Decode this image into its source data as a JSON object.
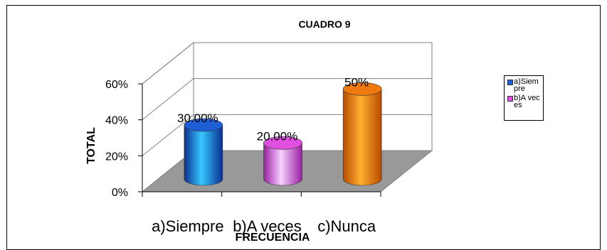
{
  "chart_data": {
    "type": "bar",
    "title": "CUADRO 9",
    "xlabel": "FRECUENCIA",
    "ylabel": "TOTAL",
    "categories": [
      "a)Siempre",
      "b)A veces",
      "c)Nunca"
    ],
    "values": [
      30,
      20,
      50
    ],
    "data_labels": [
      "30.00%",
      "20.00%",
      "50%"
    ],
    "yticks": [
      "0%",
      "20%",
      "40%",
      "60%"
    ],
    "ylim": [
      0,
      60
    ],
    "grid": true,
    "legend": {
      "position": "right",
      "entries": [
        {
          "label": "a)Siempre",
          "color": "#1f5fd6"
        },
        {
          "label": "b)A veces",
          "color": "#e04fe0"
        }
      ]
    },
    "colors": [
      "#1f5fd6",
      "#e04fe0",
      "#f07a10"
    ]
  }
}
